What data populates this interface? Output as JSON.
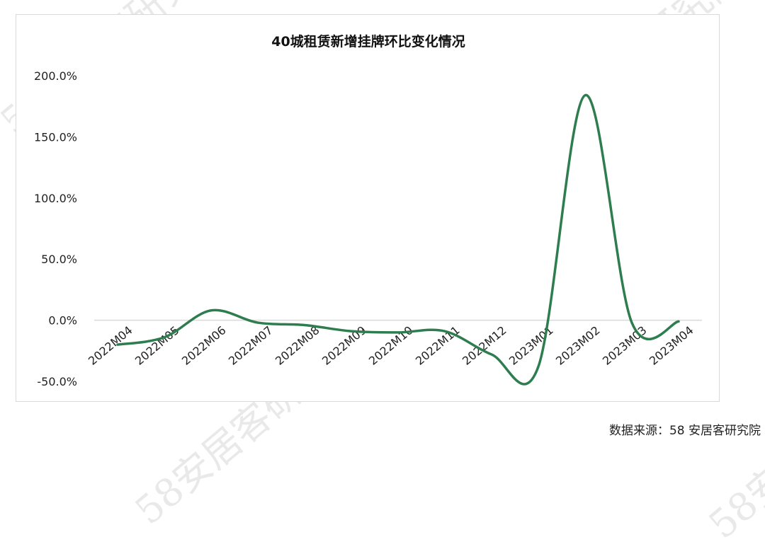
{
  "watermark_text": "58安居客研究院",
  "source_note": "数据来源：58 安居客研究院",
  "chart_data": {
    "type": "line",
    "title": "40城租赁新增挂牌环比变化情况",
    "xlabel": "",
    "ylabel": "",
    "categories": [
      "2022M04",
      "2022M05",
      "2022M06",
      "2022M07",
      "2022M08",
      "2022M09",
      "2022M10",
      "2022M11",
      "2022M12",
      "2023M01",
      "2023M02",
      "2023M03",
      "2023M04"
    ],
    "series": [
      {
        "values": [
          -20.0,
          -14.0,
          8.0,
          -2.0,
          -4.0,
          -9.0,
          -10.0,
          -9.0,
          -28.0,
          -38.0,
          184.0,
          -2.0,
          -1.0
        ]
      }
    ],
    "ylim": [
      -50,
      200
    ],
    "yticks": [
      -50,
      0,
      50,
      100,
      150,
      200
    ],
    "ytick_labels": [
      "-50.0%",
      "0.0%",
      "50.0%",
      "100.0%",
      "150.0%",
      "200.0%"
    ],
    "grid": false,
    "legend": "none",
    "line_color": "#2e7d4f",
    "zero_line_color": "#d9d9d9"
  }
}
